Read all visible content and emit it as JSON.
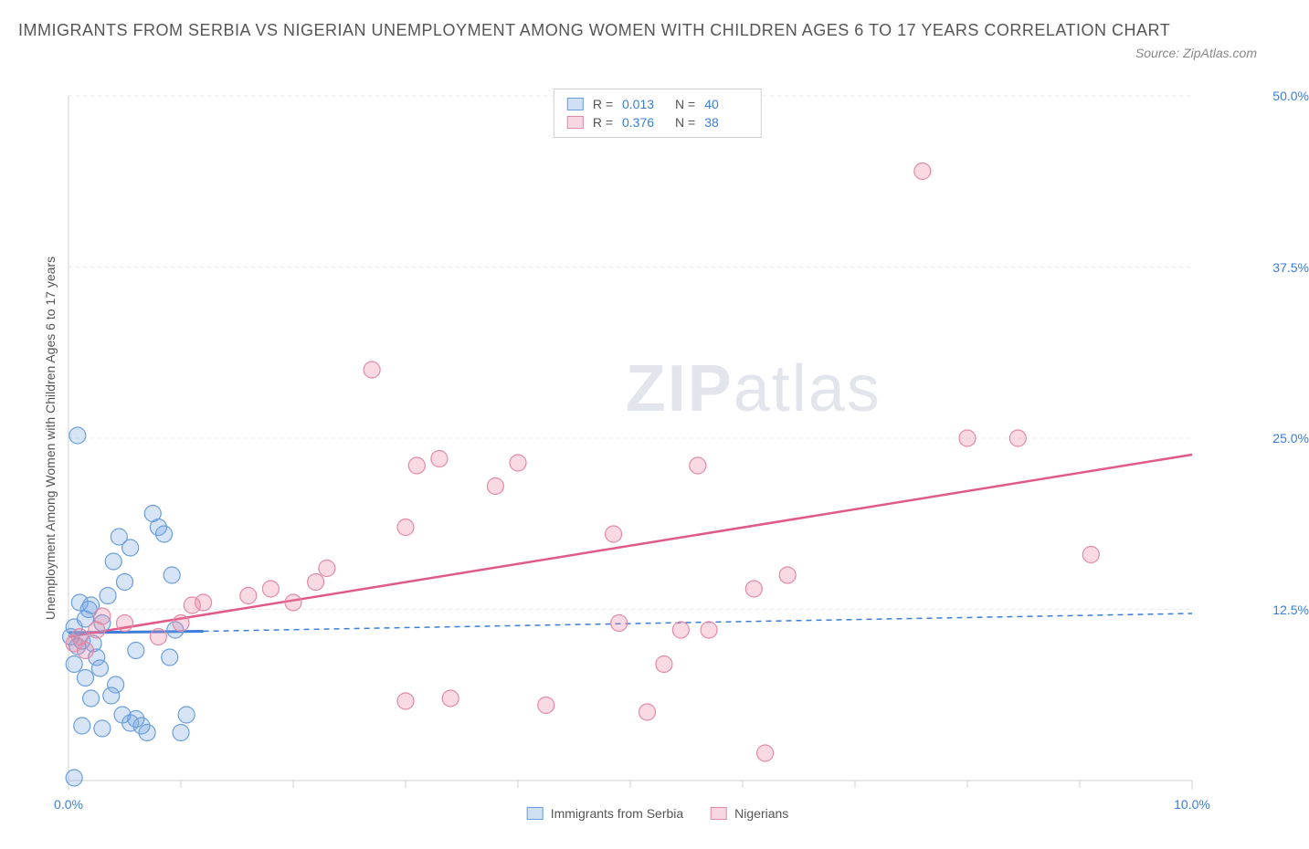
{
  "title": "IMMIGRANTS FROM SERBIA VS NIGERIAN UNEMPLOYMENT AMONG WOMEN WITH CHILDREN AGES 6 TO 17 YEARS CORRELATION CHART",
  "source_label": "Source: ZipAtlas.com",
  "ylabel": "Unemployment Among Women with Children Ages 6 to 17 years",
  "watermark": {
    "bold": "ZIP",
    "light": "atlas"
  },
  "chart": {
    "type": "scatter",
    "xlim": [
      0,
      10
    ],
    "ylim": [
      0,
      50
    ],
    "xtick_labels": [
      {
        "pos": 0,
        "label": "0.0%"
      },
      {
        "pos": 10,
        "label": "10.0%"
      }
    ],
    "xticks_minor": [
      1,
      2,
      3,
      4,
      5,
      6,
      7,
      8,
      9
    ],
    "ytick_labels": [
      {
        "pos": 12.5,
        "label": "12.5%"
      },
      {
        "pos": 25.0,
        "label": "25.0%"
      },
      {
        "pos": 37.5,
        "label": "37.5%"
      },
      {
        "pos": 50.0,
        "label": "50.0%"
      }
    ],
    "grid_color": "#e8e8e8",
    "axis_color": "#d0d0d0",
    "background_color": "#ffffff",
    "marker_radius": 9,
    "marker_stroke_width": 1.2,
    "series": [
      {
        "name": "Immigrants from Serbia",
        "fill": "rgba(120,165,225,0.30)",
        "stroke": "#6a9edb",
        "swatch_fill": "#cfe0f5",
        "swatch_border": "#6a9edb",
        "r_value": "0.013",
        "n_value": "40",
        "points": [
          [
            0.02,
            10.5
          ],
          [
            0.05,
            11.2
          ],
          [
            0.08,
            9.8
          ],
          [
            0.05,
            8.5
          ],
          [
            0.12,
            10.2
          ],
          [
            0.15,
            11.8
          ],
          [
            0.18,
            12.5
          ],
          [
            0.1,
            13.0
          ],
          [
            0.22,
            10.0
          ],
          [
            0.25,
            9.0
          ],
          [
            0.3,
            11.5
          ],
          [
            0.28,
            8.2
          ],
          [
            0.35,
            13.5
          ],
          [
            0.4,
            16.0
          ],
          [
            0.45,
            17.8
          ],
          [
            0.5,
            14.5
          ],
          [
            0.55,
            17.0
          ],
          [
            0.6,
            9.5
          ],
          [
            0.55,
            4.2
          ],
          [
            0.65,
            4.0
          ],
          [
            0.7,
            3.5
          ],
          [
            0.48,
            4.8
          ],
          [
            0.8,
            18.5
          ],
          [
            0.75,
            19.5
          ],
          [
            0.85,
            18.0
          ],
          [
            0.9,
            9.0
          ],
          [
            0.42,
            7.0
          ],
          [
            0.38,
            6.2
          ],
          [
            0.08,
            25.2
          ],
          [
            0.3,
            3.8
          ],
          [
            1.0,
            3.5
          ],
          [
            1.05,
            4.8
          ],
          [
            0.95,
            11.0
          ],
          [
            0.15,
            7.5
          ],
          [
            0.2,
            6.0
          ],
          [
            0.92,
            15.0
          ],
          [
            0.6,
            4.5
          ],
          [
            0.05,
            0.2
          ],
          [
            0.12,
            4.0
          ],
          [
            0.2,
            12.8
          ]
        ],
        "trend": {
          "type": "dashed",
          "color": "#3b7dd8",
          "width": 1.5,
          "x1": 0.0,
          "y1": 10.8,
          "x2": 1.2,
          "y2": 10.9,
          "ext_x2": 10.0,
          "ext_y2": 12.2
        }
      },
      {
        "name": "Nigerians",
        "fill": "rgba(235,130,160,0.30)",
        "stroke": "#e38aa5",
        "swatch_fill": "#f7d7e1",
        "swatch_border": "#e38aa5",
        "r_value": "0.376",
        "n_value": "38",
        "points": [
          [
            0.05,
            10.0
          ],
          [
            0.1,
            10.5
          ],
          [
            0.15,
            9.5
          ],
          [
            0.25,
            11.0
          ],
          [
            0.3,
            12.0
          ],
          [
            0.5,
            11.5
          ],
          [
            0.8,
            10.5
          ],
          [
            1.0,
            11.5
          ],
          [
            1.1,
            12.8
          ],
          [
            1.2,
            13.0
          ],
          [
            1.6,
            13.5
          ],
          [
            1.8,
            14.0
          ],
          [
            2.0,
            13.0
          ],
          [
            2.2,
            14.5
          ],
          [
            2.3,
            15.5
          ],
          [
            2.7,
            30.0
          ],
          [
            3.0,
            18.5
          ],
          [
            3.1,
            23.0
          ],
          [
            3.3,
            23.5
          ],
          [
            3.8,
            21.5
          ],
          [
            4.0,
            23.2
          ],
          [
            4.25,
            5.5
          ],
          [
            4.85,
            18.0
          ],
          [
            4.9,
            11.5
          ],
          [
            5.15,
            5.0
          ],
          [
            5.3,
            8.5
          ],
          [
            5.45,
            11.0
          ],
          [
            5.6,
            23.0
          ],
          [
            5.7,
            11.0
          ],
          [
            6.1,
            14.0
          ],
          [
            6.2,
            2.0
          ],
          [
            6.4,
            15.0
          ],
          [
            7.6,
            44.5
          ],
          [
            8.0,
            25.0
          ],
          [
            8.45,
            25.0
          ],
          [
            9.1,
            16.5
          ],
          [
            3.0,
            5.8
          ],
          [
            3.4,
            6.0
          ]
        ],
        "trend": {
          "type": "solid",
          "color": "#e05a88",
          "width": 2.5,
          "x1": 0.0,
          "y1": 10.5,
          "x2": 10.0,
          "y2": 23.8
        }
      }
    ]
  },
  "legend_top": {
    "r_label": "R =",
    "n_label": "N ="
  },
  "legend_bottom": [
    {
      "label": "Immigrants from Serbia",
      "series_idx": 0
    },
    {
      "label": "Nigerians",
      "series_idx": 1
    }
  ]
}
